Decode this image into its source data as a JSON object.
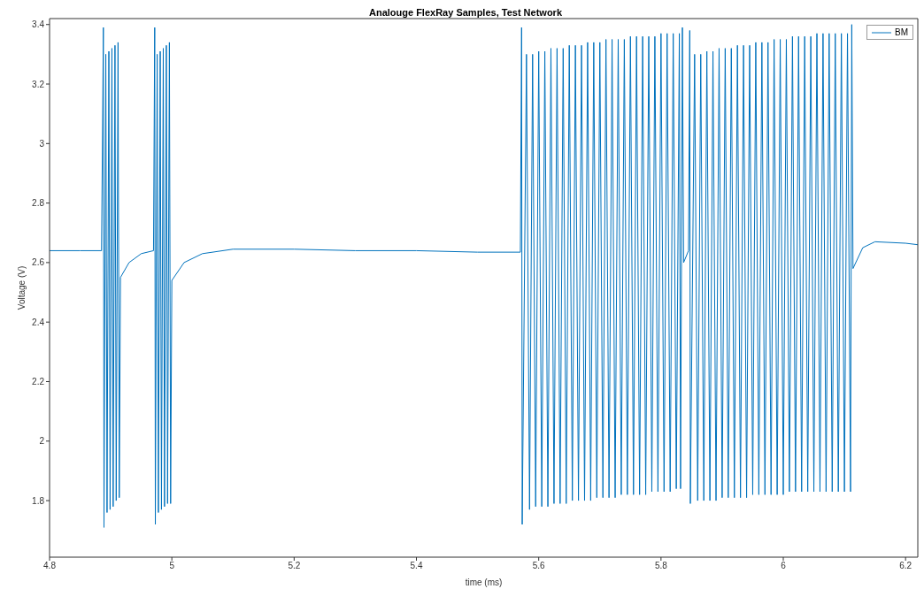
{
  "chart_data": {
    "type": "line",
    "title": "Analouge FlexRay Samples, Test Network",
    "xlabel": "time (ms)",
    "ylabel": "Voltage (V)",
    "xlim": [
      4.8,
      6.22
    ],
    "xticks": [
      4.8,
      5,
      5.2,
      5.4,
      5.6,
      5.8,
      6,
      6.2
    ],
    "ylim": [
      1.61,
      3.42
    ],
    "yticks": [
      1.8,
      2,
      2.2,
      2.4,
      2.6,
      2.8,
      3,
      3.2,
      3.4
    ],
    "grid": false,
    "legend": "top right",
    "marker": "none",
    "line_style": "solid",
    "series": [
      {
        "name": "BM",
        "color": "#0072bd",
        "x": [
          4.8,
          4.85,
          4.885,
          4.888,
          4.889,
          4.892,
          4.894,
          4.897,
          4.899,
          4.902,
          4.904,
          4.907,
          4.909,
          4.912,
          4.914,
          4.916,
          4.93,
          4.95,
          4.97,
          4.972,
          4.973,
          4.976,
          4.978,
          4.981,
          4.983,
          4.986,
          4.988,
          4.991,
          4.993,
          4.996,
          4.998,
          5.0,
          5.02,
          5.05,
          5.1,
          5.2,
          5.3,
          5.4,
          5.5,
          5.57,
          5.572,
          5.573,
          5.58,
          5.585,
          5.59,
          5.595,
          5.6,
          5.605,
          5.61,
          5.615,
          5.62,
          5.625,
          5.63,
          5.635,
          5.64,
          5.645,
          5.65,
          5.655,
          5.66,
          5.665,
          5.67,
          5.675,
          5.68,
          5.685,
          5.69,
          5.695,
          5.7,
          5.705,
          5.71,
          5.715,
          5.72,
          5.725,
          5.73,
          5.735,
          5.74,
          5.745,
          5.75,
          5.755,
          5.76,
          5.765,
          5.77,
          5.775,
          5.78,
          5.785,
          5.79,
          5.795,
          5.8,
          5.805,
          5.81,
          5.815,
          5.82,
          5.825,
          5.83,
          5.832,
          5.835,
          5.837,
          5.845,
          5.847,
          5.848,
          5.855,
          5.86,
          5.865,
          5.87,
          5.875,
          5.88,
          5.885,
          5.89,
          5.895,
          5.9,
          5.905,
          5.91,
          5.915,
          5.92,
          5.925,
          5.93,
          5.935,
          5.94,
          5.945,
          5.95,
          5.955,
          5.96,
          5.965,
          5.97,
          5.975,
          5.98,
          5.985,
          5.99,
          5.995,
          6.0,
          6.005,
          6.01,
          6.015,
          6.02,
          6.025,
          6.03,
          6.035,
          6.04,
          6.045,
          6.05,
          6.055,
          6.06,
          6.065,
          6.07,
          6.075,
          6.08,
          6.085,
          6.09,
          6.095,
          6.1,
          6.105,
          6.11,
          6.112,
          6.114,
          6.13,
          6.15,
          6.2,
          6.22
        ],
        "values": [
          2.64,
          2.64,
          2.64,
          3.39,
          1.71,
          3.3,
          1.76,
          3.31,
          1.77,
          3.32,
          1.78,
          3.33,
          1.8,
          3.34,
          1.81,
          2.55,
          2.6,
          2.63,
          2.64,
          3.39,
          1.72,
          3.3,
          1.76,
          3.31,
          1.77,
          3.32,
          1.78,
          3.33,
          1.79,
          3.34,
          1.79,
          2.54,
          2.6,
          2.63,
          2.645,
          2.645,
          2.64,
          2.64,
          2.635,
          2.635,
          3.39,
          1.72,
          3.3,
          1.77,
          3.3,
          1.78,
          3.31,
          1.78,
          3.31,
          1.78,
          3.32,
          1.79,
          3.32,
          1.79,
          3.32,
          1.79,
          3.33,
          1.8,
          3.33,
          1.8,
          3.33,
          1.8,
          3.34,
          1.8,
          3.34,
          1.81,
          3.34,
          1.81,
          3.35,
          1.81,
          3.35,
          1.81,
          3.35,
          1.82,
          3.35,
          1.82,
          3.36,
          1.82,
          3.36,
          1.82,
          3.36,
          1.82,
          3.36,
          1.83,
          3.36,
          1.83,
          3.37,
          1.83,
          3.37,
          1.83,
          3.37,
          1.84,
          3.37,
          1.84,
          3.39,
          2.6,
          2.64,
          3.38,
          1.79,
          3.3,
          1.8,
          3.3,
          1.8,
          3.31,
          1.8,
          3.31,
          1.8,
          3.32,
          1.81,
          3.32,
          1.81,
          3.32,
          1.81,
          3.33,
          1.81,
          3.33,
          1.81,
          3.33,
          1.82,
          3.34,
          1.82,
          3.34,
          1.82,
          3.34,
          1.82,
          3.35,
          1.82,
          3.35,
          1.82,
          3.35,
          1.83,
          3.36,
          1.83,
          3.36,
          1.83,
          3.36,
          1.83,
          3.36,
          1.83,
          3.37,
          1.83,
          3.37,
          1.83,
          3.37,
          1.83,
          3.37,
          1.83,
          3.37,
          1.83,
          3.37,
          1.83,
          3.4,
          2.58,
          2.65,
          2.67,
          2.665,
          2.66
        ]
      }
    ]
  }
}
